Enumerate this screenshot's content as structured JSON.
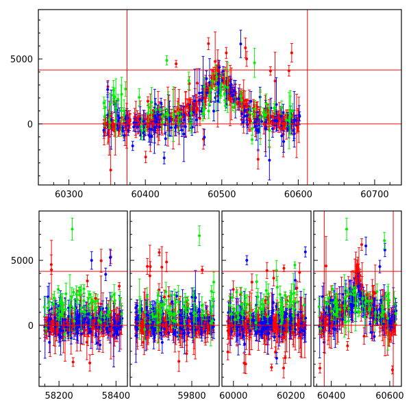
{
  "chart_data": [
    {
      "type": "scatter",
      "title": "",
      "xlabel": "",
      "ylabel": "",
      "xlim": [
        60260,
        60735
      ],
      "ylim": [
        -4700,
        8800
      ],
      "x_ticks": [
        60300,
        60400,
        60500,
        60600,
        60700
      ],
      "y_ticks": [
        0,
        5000
      ],
      "hlines": [
        0,
        4150
      ],
      "vlines": [
        60376,
        60612
      ],
      "error_bars": true,
      "colors": {
        "series_a": "#ff0000",
        "series_b": "#0000ff",
        "series_c": "#00ee00"
      },
      "series": [
        {
          "color": "red",
          "x": [
            60350,
            60380,
            60410,
            60440,
            60470,
            60490,
            60495,
            60510,
            60540,
            60570,
            60600
          ],
          "y": [
            -100,
            50,
            100,
            500,
            1400,
            3500,
            4150,
            2600,
            700,
            300,
            100
          ]
        },
        {
          "color": "blue",
          "x": [
            60360,
            60400,
            60450,
            60480,
            60500,
            60530,
            60560,
            60600
          ],
          "y": [
            100,
            0,
            300,
            2000,
            3000,
            1000,
            200,
            0
          ]
        },
        {
          "color": "green",
          "x": [
            60380,
            60420,
            60460,
            60500,
            60540
          ],
          "y": [
            1200,
            800,
            500,
            2800,
            700
          ]
        }
      ]
    },
    {
      "type": "scatter",
      "title": "",
      "xlabel": "",
      "ylabel": "",
      "broken_axis": true,
      "segments": [
        {
          "xlim": [
            58130,
            58440
          ],
          "x_ticks": [
            58200,
            58400
          ]
        },
        {
          "xlim": [
            59620,
            59880
          ],
          "x_ticks": [
            59800
          ]
        },
        {
          "xlim": [
            59960,
            60270
          ],
          "x_ticks": [
            60000,
            60200
          ]
        },
        {
          "xlim": [
            60340,
            60640
          ],
          "x_ticks": [
            60400,
            60600
          ]
        }
      ],
      "ylim": [
        -4700,
        8800
      ],
      "y_ticks": [
        0,
        5000
      ],
      "hlines": [
        0,
        4150
      ],
      "error_bars": true,
      "series": [
        {
          "color": "red",
          "x": [
            58170,
            58300,
            58410,
            59640,
            59760,
            59870,
            59980,
            60100,
            60240,
            60360,
            60470,
            60490,
            60520,
            60600
          ],
          "y": [
            0,
            100,
            150,
            0,
            100,
            0,
            0,
            50,
            0,
            0,
            1500,
            4150,
            1500,
            100
          ]
        },
        {
          "color": "blue",
          "x": [
            58200,
            58350,
            59700,
            59800,
            60050,
            60200,
            60380,
            60480,
            60550
          ],
          "y": [
            300,
            200,
            400,
            300,
            200,
            500,
            300,
            2000,
            800
          ]
        },
        {
          "color": "green",
          "x": [
            58280,
            59700,
            60050,
            60450
          ],
          "y": [
            1500,
            1200,
            1600,
            1500
          ]
        }
      ]
    }
  ]
}
